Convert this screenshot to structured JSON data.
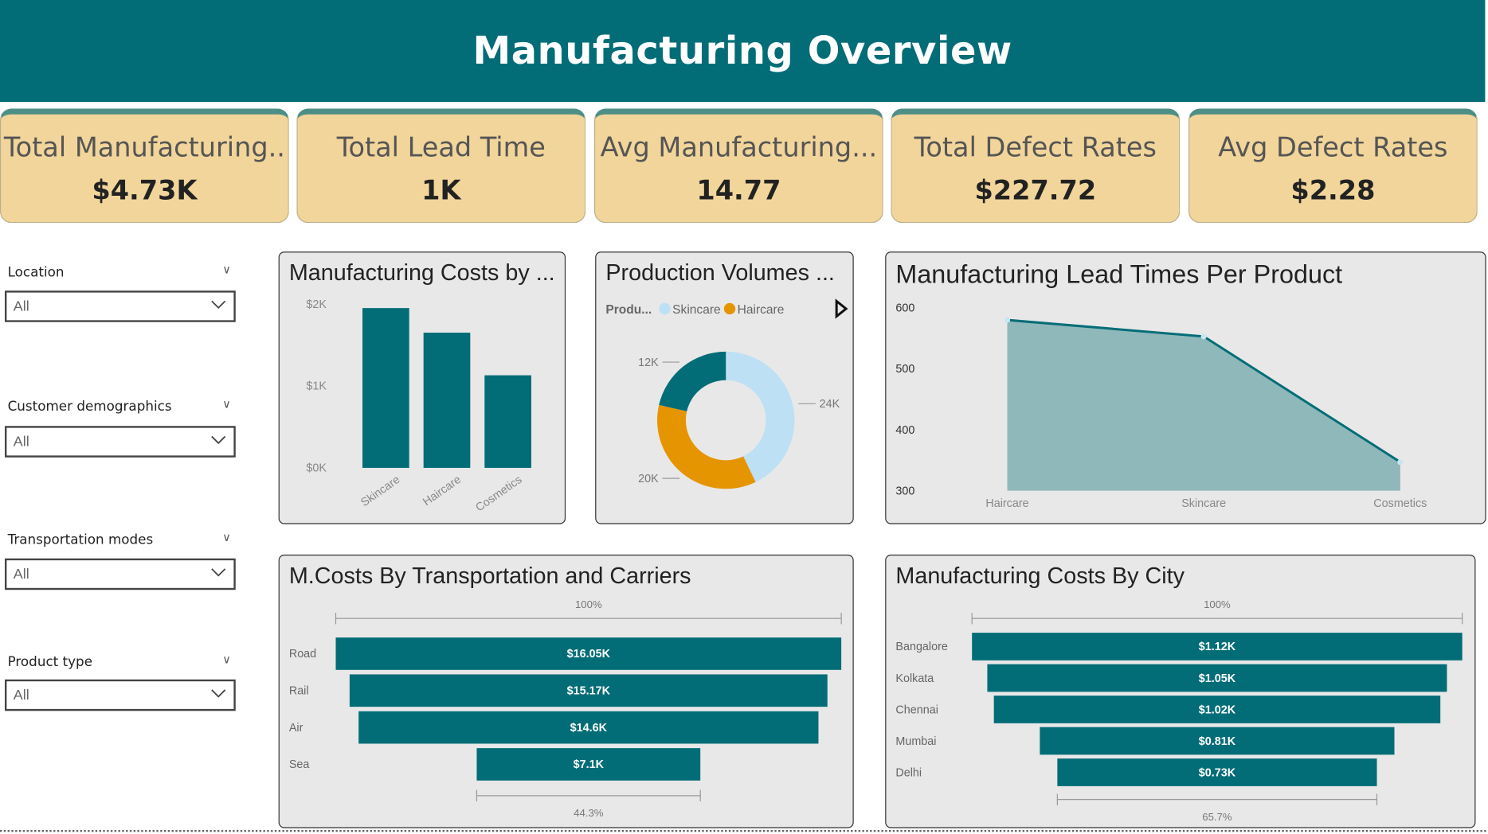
{
  "header": {
    "title": "Manufacturing Overview"
  },
  "kpis": [
    {
      "label": "Total Manufacturing..",
      "value": "$4.73K"
    },
    {
      "label": "Total Lead Time",
      "value": "1K"
    },
    {
      "label": "Avg Manufacturing...",
      "value": "14.77"
    },
    {
      "label": "Total Defect Rates",
      "value": "$227.72"
    },
    {
      "label": "Avg Defect Rates",
      "value": "$2.28"
    }
  ],
  "slicers": [
    {
      "label": "Location",
      "value": "All"
    },
    {
      "label": "Customer demographics",
      "value": "All"
    },
    {
      "label": "Transportation modes",
      "value": "All"
    },
    {
      "label": "Product type",
      "value": "All"
    }
  ],
  "colors": {
    "teal": "#036d77",
    "kpi": "#f2d59a",
    "skincare": "#bde0f5",
    "haircare": "#e59500",
    "cosmetics": "#036d77",
    "area": "#8fb8ba"
  },
  "chart_data": [
    {
      "id": "costs",
      "type": "bar",
      "title": "Manufacturing Costs by ...",
      "categories": [
        "Skincare",
        "Haircare",
        "Cosmetics"
      ],
      "values": [
        1.95,
        1.65,
        1.13
      ],
      "unit": "$K",
      "yticks": [
        "$0K",
        "$1K",
        "$2K"
      ],
      "ylim": [
        0,
        2
      ]
    },
    {
      "id": "volumes",
      "type": "pie",
      "title": "Production Volumes ...",
      "legend_title": "Produ...",
      "legend": [
        "Skincare",
        "Haircare"
      ],
      "categories": [
        "Skincare",
        "Haircare",
        "Cosmetics"
      ],
      "values": [
        24,
        20,
        12
      ],
      "labels": [
        "24K",
        "20K",
        "12K"
      ]
    },
    {
      "id": "lead",
      "type": "area",
      "title": "Manufacturing Lead Times Per Product",
      "categories": [
        "Haircare",
        "Skincare",
        "Cosmetics"
      ],
      "values": [
        580,
        553,
        347
      ],
      "yticks": [
        "300",
        "400",
        "500",
        "600"
      ],
      "ylim": [
        300,
        600
      ]
    },
    {
      "id": "transport",
      "type": "funnel",
      "title": "M.Costs By Transportation and Carriers",
      "categories": [
        "Road",
        "Rail",
        "Air",
        "Sea"
      ],
      "values": [
        16.05,
        15.17,
        14.6,
        7.1
      ],
      "labels": [
        "$16.05K",
        "$15.17K",
        "$14.6K",
        "$7.1K"
      ],
      "top_pct": "100%",
      "bottom_pct": "44.3%"
    },
    {
      "id": "city",
      "type": "funnel",
      "title": "Manufacturing Costs By City",
      "categories": [
        "Bangalore",
        "Kolkata",
        "Chennai",
        "Mumbai",
        "Delhi"
      ],
      "values": [
        1.12,
        1.05,
        1.02,
        0.81,
        0.73
      ],
      "labels": [
        "$1.12K",
        "$1.05K",
        "$1.02K",
        "$0.81K",
        "$0.73K"
      ],
      "top_pct": "100%",
      "bottom_pct": "65.7%"
    }
  ]
}
